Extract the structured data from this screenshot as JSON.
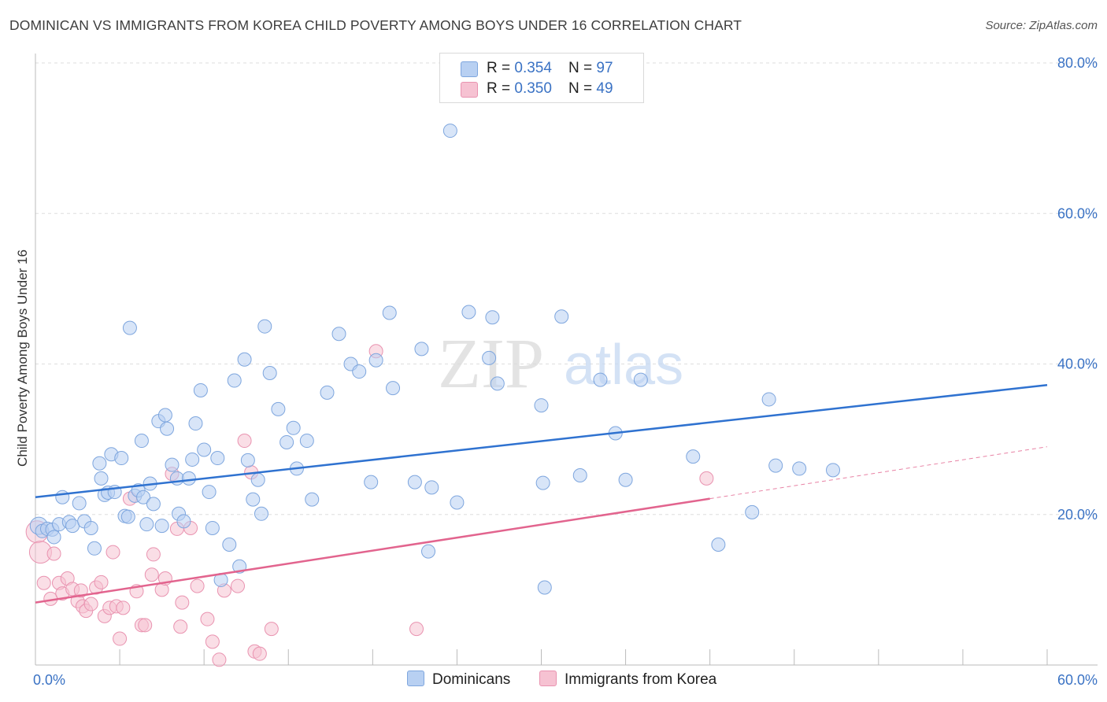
{
  "title": "DOMINICAN VS IMMIGRANTS FROM KOREA CHILD POVERTY AMONG BOYS UNDER 16 CORRELATION CHART",
  "source": "Source: ZipAtlas.com",
  "watermark": {
    "zip": "ZIP",
    "atlas": "atlas"
  },
  "legend": {
    "rows": [
      {
        "r_label": "R = ",
        "r_value": "0.354",
        "n_label": "N = ",
        "n_value": "97"
      },
      {
        "r_label": "R = ",
        "r_value": "0.350",
        "n_label": "N = ",
        "n_value": "49"
      }
    ],
    "bottom": [
      "Dominicans",
      "Immigrants from Korea"
    ]
  },
  "colors": {
    "blue_fill": "#b8d0f2",
    "blue_stroke": "#7ea6de",
    "blue_line": "#2f72d0",
    "pink_fill": "#f6c2d2",
    "pink_stroke": "#e993b0",
    "pink_line": "#e2648e",
    "grid": "#dddddd",
    "tick_text": "#3a72c4"
  },
  "chart_data": {
    "type": "scatter",
    "title": "DOMINICAN VS IMMIGRANTS FROM KOREA CHILD POVERTY AMONG BOYS UNDER 16 CORRELATION CHART",
    "xlabel": "",
    "ylabel": "Child Poverty Among Boys Under 16",
    "xlim": [
      0,
      60
    ],
    "ylim": [
      0,
      80
    ],
    "x_tick_labels": [
      "0.0%",
      "60.0%"
    ],
    "y_tick_labels": [
      "20.0%",
      "40.0%",
      "60.0%",
      "80.0%"
    ],
    "y_ticks": [
      20,
      40,
      60,
      80
    ],
    "grid": true,
    "legend_position": "top-center",
    "series": [
      {
        "name": "Dominicans",
        "r": 0.354,
        "n": 97,
        "trend": [
          [
            0,
            22.3
          ],
          [
            60,
            37.2
          ]
        ],
        "points": [
          [
            0.2,
            18.5
          ],
          [
            0.4,
            17.8
          ],
          [
            0.7,
            18.1
          ],
          [
            1.0,
            18.0
          ],
          [
            1.1,
            17.0
          ],
          [
            1.4,
            18.7
          ],
          [
            1.6,
            22.3
          ],
          [
            2.0,
            19.0
          ],
          [
            2.2,
            18.5
          ],
          [
            2.6,
            21.5
          ],
          [
            2.9,
            19.1
          ],
          [
            3.3,
            18.2
          ],
          [
            3.5,
            15.5
          ],
          [
            3.8,
            26.8
          ],
          [
            3.9,
            24.8
          ],
          [
            4.1,
            22.6
          ],
          [
            4.3,
            22.9
          ],
          [
            4.5,
            28.0
          ],
          [
            4.7,
            23.0
          ],
          [
            5.1,
            27.5
          ],
          [
            5.3,
            19.8
          ],
          [
            5.5,
            19.7
          ],
          [
            5.6,
            44.8
          ],
          [
            5.9,
            22.5
          ],
          [
            6.1,
            23.2
          ],
          [
            6.3,
            29.8
          ],
          [
            6.4,
            22.3
          ],
          [
            6.6,
            18.7
          ],
          [
            6.8,
            24.1
          ],
          [
            7.0,
            21.4
          ],
          [
            7.3,
            32.4
          ],
          [
            7.5,
            18.5
          ],
          [
            7.7,
            33.2
          ],
          [
            7.8,
            31.4
          ],
          [
            8.1,
            26.6
          ],
          [
            8.4,
            24.8
          ],
          [
            8.5,
            20.1
          ],
          [
            8.8,
            19.1
          ],
          [
            9.1,
            24.8
          ],
          [
            9.3,
            27.3
          ],
          [
            9.5,
            32.1
          ],
          [
            9.8,
            36.5
          ],
          [
            10.0,
            28.6
          ],
          [
            10.3,
            23.0
          ],
          [
            10.5,
            18.2
          ],
          [
            10.8,
            27.5
          ],
          [
            11.0,
            11.3
          ],
          [
            11.5,
            16.0
          ],
          [
            11.8,
            37.8
          ],
          [
            12.1,
            13.1
          ],
          [
            12.4,
            40.6
          ],
          [
            12.6,
            27.2
          ],
          [
            12.9,
            22.0
          ],
          [
            13.2,
            24.6
          ],
          [
            13.4,
            20.1
          ],
          [
            13.6,
            45.0
          ],
          [
            13.9,
            38.8
          ],
          [
            14.4,
            34.0
          ],
          [
            14.9,
            29.6
          ],
          [
            15.3,
            31.5
          ],
          [
            15.5,
            26.1
          ],
          [
            16.1,
            29.8
          ],
          [
            16.4,
            22.0
          ],
          [
            17.3,
            36.2
          ],
          [
            18.0,
            44.0
          ],
          [
            18.7,
            40.0
          ],
          [
            19.2,
            39.0
          ],
          [
            19.9,
            24.3
          ],
          [
            20.2,
            40.5
          ],
          [
            21.0,
            46.8
          ],
          [
            21.2,
            36.8
          ],
          [
            22.5,
            24.3
          ],
          [
            22.9,
            42.0
          ],
          [
            23.3,
            15.1
          ],
          [
            23.5,
            23.6
          ],
          [
            24.6,
            71.0
          ],
          [
            25.0,
            21.6
          ],
          [
            25.7,
            46.9
          ],
          [
            26.9,
            40.8
          ],
          [
            27.1,
            46.2
          ],
          [
            27.4,
            37.4
          ],
          [
            30.0,
            34.5
          ],
          [
            30.1,
            24.2
          ],
          [
            30.2,
            10.3
          ],
          [
            31.2,
            46.3
          ],
          [
            32.3,
            25.2
          ],
          [
            33.5,
            37.9
          ],
          [
            34.4,
            30.8
          ],
          [
            35.0,
            24.6
          ],
          [
            35.9,
            37.9
          ],
          [
            39.0,
            27.7
          ],
          [
            40.5,
            16.0
          ],
          [
            42.5,
            20.3
          ],
          [
            43.5,
            35.3
          ],
          [
            43.9,
            26.5
          ],
          [
            45.3,
            26.1
          ],
          [
            47.3,
            25.9
          ]
        ]
      },
      {
        "name": "Immigrants from Korea",
        "r": 0.35,
        "n": 49,
        "trend": [
          [
            0,
            8.3
          ],
          [
            40,
            22.1
          ]
        ],
        "trend_extension": [
          [
            40,
            22.1
          ],
          [
            60,
            29.0
          ]
        ],
        "points": [
          [
            0.1,
            17.7
          ],
          [
            0.3,
            15.0
          ],
          [
            0.5,
            10.9
          ],
          [
            0.9,
            8.8
          ],
          [
            1.1,
            14.8
          ],
          [
            1.4,
            10.9
          ],
          [
            1.6,
            9.5
          ],
          [
            1.9,
            11.5
          ],
          [
            2.2,
            10.1
          ],
          [
            2.5,
            8.5
          ],
          [
            2.7,
            9.9
          ],
          [
            2.8,
            7.8
          ],
          [
            3.0,
            7.2
          ],
          [
            3.3,
            8.1
          ],
          [
            3.6,
            10.3
          ],
          [
            3.9,
            11.0
          ],
          [
            4.1,
            6.5
          ],
          [
            4.4,
            7.6
          ],
          [
            4.6,
            15.0
          ],
          [
            4.8,
            7.8
          ],
          [
            5.0,
            3.5
          ],
          [
            5.2,
            7.6
          ],
          [
            5.6,
            22.1
          ],
          [
            6.0,
            9.8
          ],
          [
            6.3,
            5.3
          ],
          [
            6.5,
            5.3
          ],
          [
            6.9,
            12.0
          ],
          [
            7.0,
            14.7
          ],
          [
            7.5,
            10.0
          ],
          [
            7.7,
            11.5
          ],
          [
            8.1,
            25.4
          ],
          [
            8.4,
            18.1
          ],
          [
            8.6,
            5.1
          ],
          [
            8.7,
            8.3
          ],
          [
            9.2,
            18.2
          ],
          [
            9.6,
            10.5
          ],
          [
            10.2,
            6.1
          ],
          [
            10.5,
            3.1
          ],
          [
            10.9,
            0.7
          ],
          [
            11.2,
            9.9
          ],
          [
            12.0,
            10.5
          ],
          [
            12.4,
            29.8
          ],
          [
            12.8,
            25.6
          ],
          [
            13.0,
            1.8
          ],
          [
            13.3,
            1.5
          ],
          [
            14.0,
            4.8
          ],
          [
            20.2,
            41.7
          ],
          [
            22.6,
            4.8
          ],
          [
            39.8,
            24.8
          ]
        ]
      }
    ]
  }
}
